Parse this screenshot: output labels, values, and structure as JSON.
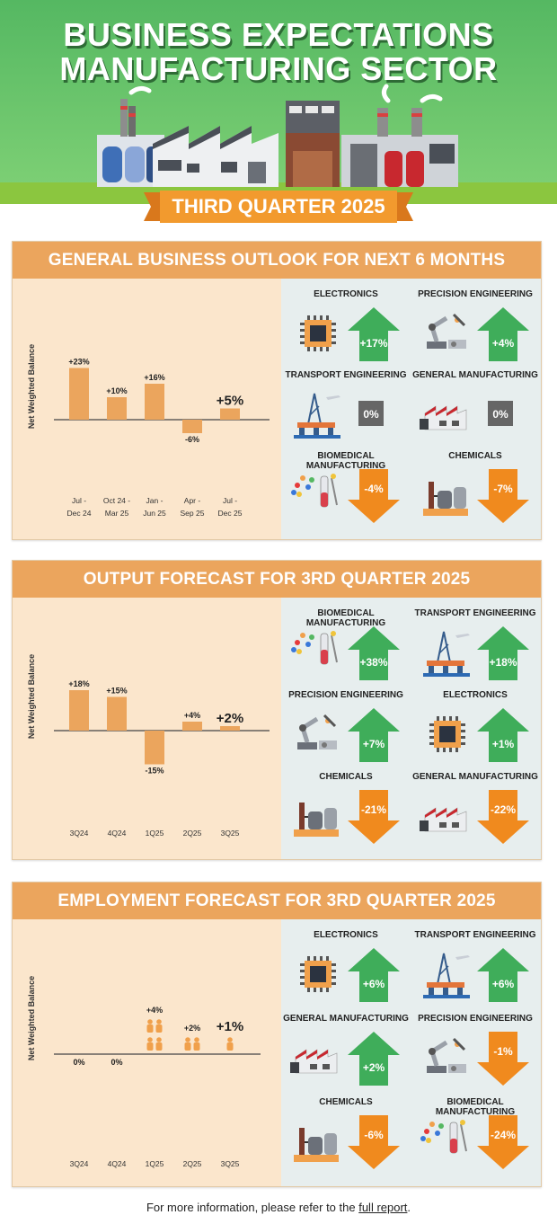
{
  "header": {
    "title_line1": "BUSINESS EXPECTATIONS",
    "title_line2": "MANUFACTURING SECTOR",
    "quarter": "THIRD QUARTER 2025"
  },
  "colors": {
    "up": "#3fad5a",
    "down": "#f08a1e",
    "neutral": "#666666",
    "bar": "#eba55d",
    "panel_bg": "#fbe6cc",
    "title_bg": "#eba55d",
    "right_bg": "#e7eeee",
    "header_green": "#5bbc64"
  },
  "panels": [
    {
      "title": "GENERAL BUSINESS OUTLOOK FOR NEXT 6 MONTHS",
      "ylabel": "Net Weighted Balance",
      "sectors": [
        {
          "name": "ELECTRONICS",
          "value": "+17%",
          "dir": "up",
          "icon": "chip-icon"
        },
        {
          "name": "PRECISION ENGINEERING",
          "value": "+4%",
          "dir": "up",
          "icon": "robot-arm-icon"
        },
        {
          "name": "TRANSPORT ENGINEERING",
          "value": "0%",
          "dir": "neutral",
          "icon": "oil-rig-icon"
        },
        {
          "name": "GENERAL MANUFACTURING",
          "value": "0%",
          "dir": "neutral",
          "icon": "factory-icon"
        },
        {
          "name": "BIOMEDICAL MANUFACTURING",
          "value": "-4%",
          "dir": "down",
          "icon": "lab-icon"
        },
        {
          "name": "CHEMICALS",
          "value": "-7%",
          "dir": "down",
          "icon": "chemical-plant-icon"
        }
      ]
    },
    {
      "title": "OUTPUT FORECAST FOR 3RD QUARTER 2025",
      "ylabel": "Net Weighted Balance",
      "sectors": [
        {
          "name": "BIOMEDICAL MANUFACTURING",
          "value": "+38%",
          "dir": "up",
          "icon": "lab-icon"
        },
        {
          "name": "TRANSPORT ENGINEERING",
          "value": "+18%",
          "dir": "up",
          "icon": "oil-rig-icon"
        },
        {
          "name": "PRECISION ENGINEERING",
          "value": "+7%",
          "dir": "up",
          "icon": "robot-arm-icon"
        },
        {
          "name": "ELECTRONICS",
          "value": "+1%",
          "dir": "up",
          "icon": "chip-icon"
        },
        {
          "name": "CHEMICALS",
          "value": "-21%",
          "dir": "down",
          "icon": "chemical-plant-icon"
        },
        {
          "name": "GENERAL MANUFACTURING",
          "value": "-22%",
          "dir": "down",
          "icon": "factory-icon"
        }
      ]
    },
    {
      "title": "EMPLOYMENT FORECAST FOR 3RD QUARTER 2025",
      "ylabel": "Net Weighted Balance",
      "sectors": [
        {
          "name": "ELECTRONICS",
          "value": "+6%",
          "dir": "up",
          "icon": "chip-icon"
        },
        {
          "name": "TRANSPORT ENGINEERING",
          "value": "+6%",
          "dir": "up",
          "icon": "oil-rig-icon"
        },
        {
          "name": "GENERAL MANUFACTURING",
          "value": "+2%",
          "dir": "up",
          "icon": "factory-icon"
        },
        {
          "name": "PRECISION ENGINEERING",
          "value": "-1%",
          "dir": "down",
          "icon": "robot-arm-icon"
        },
        {
          "name": "CHEMICALS",
          "value": "-6%",
          "dir": "down",
          "icon": "chemical-plant-icon"
        },
        {
          "name": "BIOMEDICAL MANUFACTURING",
          "value": "-24%",
          "dir": "down",
          "icon": "lab-icon"
        }
      ]
    }
  ],
  "chart_data": [
    {
      "type": "bar",
      "categories": [
        "Jul - Dec 24",
        "Oct 24 - Mar 25",
        "Jan - Jun 25",
        "Apr - Sep 25",
        "Jul - Dec 25"
      ],
      "values": [
        23,
        10,
        16,
        -6,
        5
      ],
      "labels": [
        "+23%",
        "+10%",
        "+16%",
        "-6%",
        "+5%"
      ],
      "ylabel": "Net Weighted Balance"
    },
    {
      "type": "bar",
      "categories": [
        "3Q24",
        "4Q24",
        "1Q25",
        "2Q25",
        "3Q25"
      ],
      "values": [
        18,
        15,
        -15,
        4,
        2
      ],
      "labels": [
        "+18%",
        "+15%",
        "-15%",
        "+4%",
        "+2%"
      ],
      "ylabel": "Net Weighted Balance"
    },
    {
      "type": "bar",
      "categories": [
        "3Q24",
        "4Q24",
        "1Q25",
        "2Q25",
        "3Q25"
      ],
      "values": [
        0,
        0,
        4,
        2,
        1
      ],
      "labels": [
        "0%",
        "0%",
        "+4%",
        "+2%",
        "+1%"
      ],
      "ylabel": "Net Weighted Balance"
    }
  ],
  "footer": {
    "text": "For more information, please refer to the ",
    "link": "full report",
    "end": "."
  }
}
